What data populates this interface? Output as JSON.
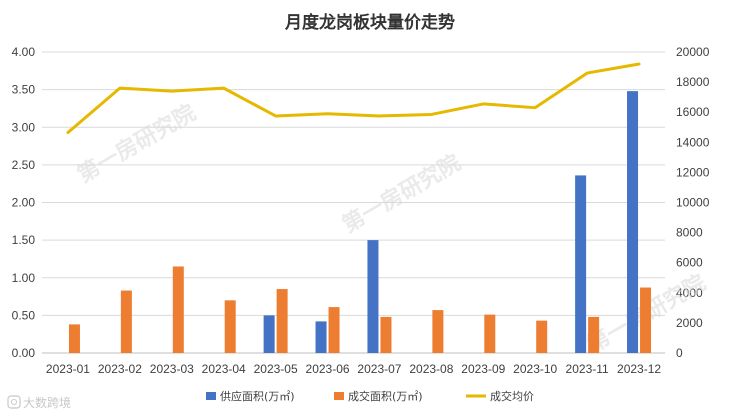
{
  "chart_data": {
    "type": "bar",
    "title": "月度龙岗板块量价走势",
    "categories": [
      "2023-01",
      "2023-02",
      "2023-03",
      "2023-04",
      "2023-05",
      "2023-06",
      "2023-07",
      "2023-08",
      "2023-09",
      "2023-10",
      "2023-11",
      "2023-12"
    ],
    "series": [
      {
        "name": "供应面积(万㎡)",
        "type": "bar",
        "axis": "left",
        "color": "#4472c4",
        "values": [
          0,
          0,
          0,
          0,
          0.5,
          0.42,
          1.5,
          0,
          0,
          0,
          2.36,
          3.48
        ]
      },
      {
        "name": "成交面积(万㎡)",
        "type": "bar",
        "axis": "left",
        "color": "#ed7d31",
        "values": [
          0.38,
          0.83,
          1.15,
          0.7,
          0.85,
          0.61,
          0.48,
          0.57,
          0.51,
          0.43,
          0.48,
          0.87
        ]
      },
      {
        "name": "成交均价",
        "type": "line",
        "axis": "right",
        "color": "#e6b800",
        "values": [
          14650,
          17600,
          17400,
          17600,
          15750,
          15900,
          15750,
          15850,
          16550,
          16300,
          18600,
          19200
        ]
      }
    ],
    "yleft": {
      "lim": [
        0,
        4
      ],
      "ticks": [
        "0.00",
        "0.50",
        "1.00",
        "1.50",
        "2.00",
        "2.50",
        "3.00",
        "3.50",
        "4.00"
      ]
    },
    "yright": {
      "lim": [
        0,
        20000
      ],
      "ticks": [
        "0",
        "2000",
        "4000",
        "6000",
        "8000",
        "10000",
        "12000",
        "14000",
        "16000",
        "18000",
        "20000"
      ]
    },
    "grid": true,
    "legend": "bottom"
  },
  "watermark": "第一房研究院",
  "logo": {
    "text": "大数跨境",
    "icon": "logo-icon"
  }
}
